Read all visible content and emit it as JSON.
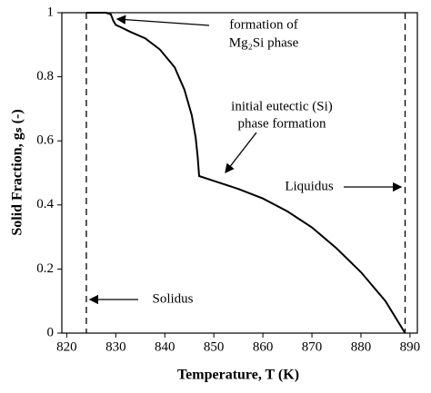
{
  "chart_data": {
    "type": "line",
    "xlabel": "Temperature, T (K)",
    "ylabel": "Solid Fraction, gₛ (-)",
    "x": [
      824,
      826,
      828,
      829,
      829.5,
      830,
      831,
      833,
      836,
      839,
      842,
      844,
      845.5,
      846.3,
      846.7,
      847,
      850,
      855,
      860,
      865,
      870,
      875,
      880,
      885,
      889
    ],
    "values": [
      1,
      1,
      1,
      0.995,
      0.975,
      0.962,
      0.955,
      0.94,
      0.92,
      0.885,
      0.83,
      0.76,
      0.68,
      0.61,
      0.55,
      0.49,
      0.475,
      0.45,
      0.42,
      0.38,
      0.33,
      0.265,
      0.19,
      0.1,
      0
    ],
    "color": "#000000",
    "xlim": [
      819,
      891.5
    ],
    "ylim": [
      0,
      1
    ],
    "xticks": [
      820,
      830,
      840,
      850,
      860,
      870,
      880,
      890
    ],
    "yticks": [
      0,
      0.2,
      0.4,
      0.6,
      0.8,
      1
    ],
    "reference_lines": [
      824,
      889
    ],
    "annotations": [
      "formation of",
      "Mg₂Si phase",
      "initial eutectic (Si)",
      "phase formation",
      "Liquidus",
      "Solidus"
    ]
  }
}
